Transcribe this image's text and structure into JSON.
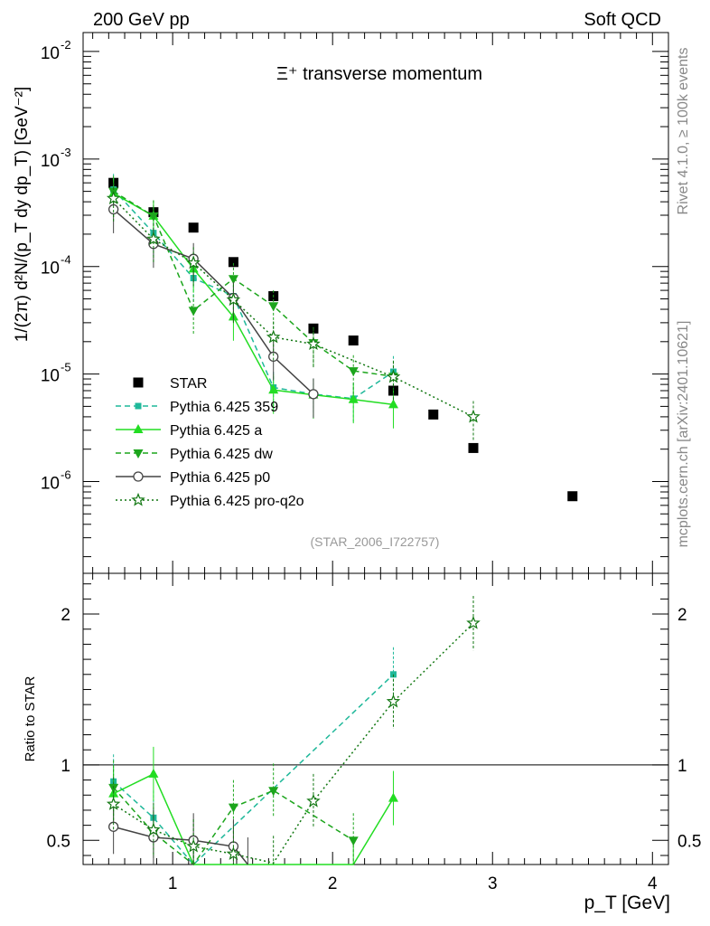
{
  "header": {
    "left": "200 GeV pp",
    "right": "Soft QCD"
  },
  "side_labels": {
    "right_top": "Rivet 4.1.0, ≥ 100k events",
    "right_bottom": "mcplots.cern.ch [arXiv:2401.10621]"
  },
  "colors": {
    "star": "#000000",
    "p359": "#1fb89a",
    "pa": "#22dd22",
    "pdw": "#1ca51c",
    "pp0": "#444444",
    "pq2o": "#117711",
    "axis": "#000000"
  },
  "chart_data": [
    {
      "type": "scatter",
      "title": "Ξ⁺ transverse momentum",
      "watermark": "(STAR_2006_I722757)",
      "ylabel": "1/(2π) d²N/(p_T dy dp_T) [GeV⁻²]",
      "xlabel": "p_T [GeV]",
      "yscale": "log",
      "xlim": [
        0.44,
        4.1
      ],
      "ylim": [
        1.4e-07,
        0.015
      ],
      "y_ticks": [
        "10^-6",
        "10^-5",
        "10^-4",
        "10^-3",
        "10^-2"
      ],
      "legend": [
        "STAR",
        "Pythia 6.425 359",
        "Pythia 6.425 a",
        "Pythia 6.425 dw",
        "Pythia 6.425 p0",
        "Pythia 6.425 pro-q2o"
      ],
      "series": [
        {
          "name": "STAR",
          "x": [
            0.63,
            0.88,
            1.13,
            1.38,
            1.63,
            1.88,
            2.13,
            2.38,
            2.63,
            2.88,
            3.5
          ],
          "y": [
            0.0006,
            0.00032,
            0.00023,
            0.00011,
            5.3e-05,
            2.65e-05,
            2.05e-05,
            7e-06,
            4.2e-06,
            2.05e-06,
            7.3e-07
          ]
        },
        {
          "name": "Pythia 6.425 359",
          "x": [
            0.63,
            0.88,
            1.13,
            1.38,
            1.63,
            1.88,
            2.13,
            2.38
          ],
          "y": [
            0.00052,
            0.000205,
            7.8e-05,
            5.3e-05,
            7.5e-06,
            6.5e-06,
            5.9e-06,
            1.05e-05
          ]
        },
        {
          "name": "Pythia 6.425 a",
          "x": [
            0.63,
            0.88,
            1.13,
            1.38,
            1.63,
            1.88,
            2.13,
            2.38
          ],
          "y": [
            0.00048,
            0.000295,
            9.5e-05,
            3.4e-05,
            7.1e-06,
            6.4e-06,
            5.8e-06,
            5.2e-06
          ]
        },
        {
          "name": "Pythia 6.425 dw",
          "x": [
            0.63,
            0.88,
            1.13,
            1.38,
            1.63,
            1.88,
            2.13,
            2.38
          ],
          "y": [
            0.0005,
            0.000295,
            3.9e-05,
            7.7e-05,
            4.3e-05,
            1.95e-05,
            1.07e-05,
            9.5e-06
          ]
        },
        {
          "name": "Pythia 6.425 p0",
          "x": [
            0.63,
            0.88,
            1.13,
            1.38,
            1.63,
            1.88
          ],
          "y": [
            0.00034,
            0.000162,
            0.000118,
            5.1e-05,
            1.45e-05,
            6.5e-06
          ]
        },
        {
          "name": "Pythia 6.425 pro-q2o",
          "x": [
            0.63,
            0.88,
            1.13,
            1.38,
            1.63,
            1.88,
            2.38,
            2.88
          ],
          "y": [
            0.00043,
            0.00018,
            0.000108,
            4.9e-05,
            2.2e-05,
            1.9e-05,
            9.4e-06,
            4e-06
          ]
        }
      ]
    },
    {
      "type": "scatter",
      "title": "",
      "ylabel": "Ratio to STAR",
      "xlabel": "p_T [GeV]",
      "xlim": [
        0.44,
        4.1
      ],
      "ylim": [
        0.34,
        2.27
      ],
      "x_ticks": [
        "1",
        "2",
        "3",
        "4"
      ],
      "y_ticks": [
        "0.5",
        "1",
        "2"
      ],
      "reference_line": 1,
      "series": [
        {
          "name": "Pythia 6.425 359",
          "x": [
            0.63,
            0.88,
            1.13,
            2.38
          ],
          "y": [
            0.89,
            0.65,
            0.34,
            1.6
          ]
        },
        {
          "name": "Pythia 6.425 a",
          "x": [
            0.63,
            0.88,
            1.13,
            2.13,
            2.38
          ],
          "y": [
            0.81,
            0.94,
            0.34,
            0.34,
            0.78
          ]
        },
        {
          "name": "Pythia 6.425 dw",
          "x": [
            0.63,
            0.88,
            1.13,
            1.38,
            1.63,
            2.13
          ],
          "y": [
            0.85,
            0.55,
            0.34,
            0.72,
            0.83,
            0.5
          ]
        },
        {
          "name": "Pythia 6.425 p0",
          "x": [
            0.63,
            0.88,
            1.13,
            1.38,
            1.47
          ],
          "y": [
            0.59,
            0.52,
            0.5,
            0.46,
            0.34
          ]
        },
        {
          "name": "Pythia 6.425 pro-q2o",
          "x": [
            0.63,
            0.88,
            1.13,
            1.38,
            1.63,
            1.88,
            2.38,
            2.88
          ],
          "y": [
            0.74,
            0.57,
            0.46,
            0.41,
            0.35,
            0.76,
            1.42,
            1.94
          ]
        }
      ]
    }
  ]
}
